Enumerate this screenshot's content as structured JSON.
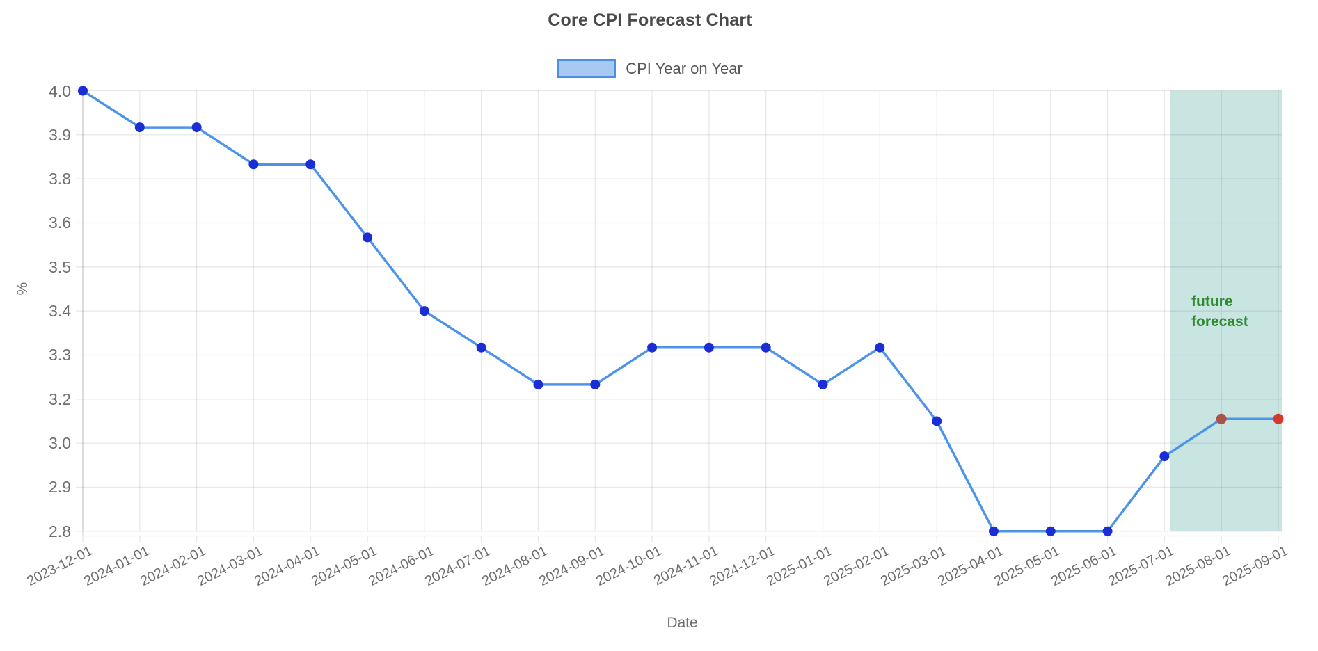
{
  "chart": {
    "title": "Core CPI Forecast Chart",
    "legend": {
      "label": "CPI Year on Year"
    },
    "x_axis": {
      "title": "Date",
      "tick_labels": [
        "2023-12-01",
        "2024-01-01",
        "2024-02-01",
        "2024-03-01",
        "2024-04-01",
        "2024-05-01",
        "2024-06-01",
        "2024-07-01",
        "2024-08-01",
        "2024-09-01",
        "2024-10-01",
        "2024-11-01",
        "2024-12-01",
        "2025-01-01",
        "2025-02-01",
        "2025-03-01",
        "2025-04-01",
        "2025-05-01",
        "2025-06-01",
        "2025-07-01",
        "2025-08-01",
        "2025-09-01"
      ]
    },
    "y_axis": {
      "title": "%",
      "tick_labels": [
        "4.0",
        "3.9",
        "3.8",
        "3.6",
        "3.5",
        "3.4",
        "3.3",
        "3.2",
        "3.0",
        "2.9",
        "2.8"
      ]
    },
    "annotation": {
      "line1": "future",
      "line2": "forecast"
    },
    "colors": {
      "line": "#4d94e8",
      "point": "#1b2ed6",
      "forecast_point_aug": "#a9534a",
      "forecast_point_sep": "#d5392b",
      "band": "#c9e5e2",
      "grid": "rgba(0,0,0,0.09)",
      "axis_border": "rgba(0,0,0,0.13)",
      "tick_text": "#6e6e6e",
      "title_text": "#4a4a4a",
      "legend_text": "#565656",
      "annotation_text": "#2e8b2e",
      "legend_swatch_fill": "#a8caf2",
      "legend_swatch_border": "#4a90e2"
    }
  },
  "chart_data": {
    "type": "line",
    "title": "Core CPI Forecast Chart",
    "xlabel": "Date",
    "ylabel": "%",
    "x": [
      "2023-12-01",
      "2024-01-01",
      "2024-02-01",
      "2024-03-01",
      "2024-04-01",
      "2024-05-01",
      "2024-06-01",
      "2024-07-01",
      "2024-08-01",
      "2024-09-01",
      "2024-10-01",
      "2024-11-01",
      "2024-12-01",
      "2025-01-01",
      "2025-02-01",
      "2025-03-01",
      "2025-04-01",
      "2025-05-01",
      "2025-06-01",
      "2025-07-01",
      "2025-08-01",
      "2025-09-01"
    ],
    "series": [
      {
        "name": "CPI Year on Year",
        "values": [
          4.0,
          3.917,
          3.917,
          3.833,
          3.833,
          3.567,
          3.4,
          3.317,
          3.233,
          3.233,
          3.317,
          3.317,
          3.317,
          3.233,
          3.317,
          3.1,
          2.8,
          2.8,
          2.8,
          2.97,
          3.11,
          3.11
        ]
      }
    ],
    "y_axis_ticks": [
      4.0,
      3.9,
      3.8,
      3.6,
      3.5,
      3.4,
      3.3,
      3.2,
      3.0,
      2.9,
      2.8
    ],
    "grid": true,
    "legend_position": "top",
    "forecast": {
      "label": "future forecast",
      "band_start_after": "2025-07-01",
      "band_end": "2025-09-01",
      "forecast_points": [
        {
          "x": "2025-08-01",
          "value": 3.11
        },
        {
          "x": "2025-09-01",
          "value": 3.11
        }
      ]
    }
  }
}
